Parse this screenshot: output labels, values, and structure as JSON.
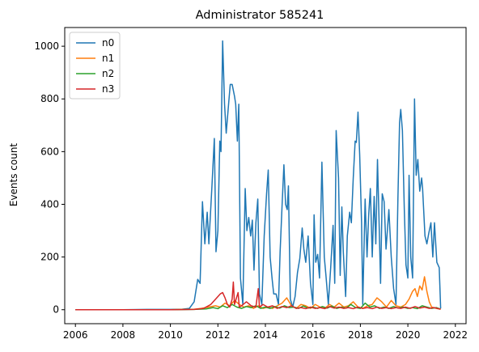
{
  "chart_data": {
    "type": "line",
    "title": "Administrator 585241",
    "xlabel": "",
    "ylabel": "Events count",
    "xlim": [
      2005.55,
      2022.45
    ],
    "ylim": [
      -53,
      1071
    ],
    "x_ticks": [
      2006,
      2008,
      2010,
      2012,
      2014,
      2016,
      2018,
      2020,
      2022
    ],
    "y_ticks": [
      0,
      200,
      400,
      600,
      800,
      1000
    ],
    "legend": {
      "placement": "top-left",
      "entries": [
        "n0",
        "n1",
        "n2",
        "n3"
      ]
    },
    "grid": false,
    "series": [
      {
        "name": "n0",
        "color": "#1f77b4",
        "points": [
          [
            2006.0,
            0
          ],
          [
            2008.0,
            0
          ],
          [
            2009.0,
            1
          ],
          [
            2010.0,
            1
          ],
          [
            2010.5,
            2
          ],
          [
            2010.8,
            5
          ],
          [
            2011.0,
            30
          ],
          [
            2011.15,
            115
          ],
          [
            2011.25,
            100
          ],
          [
            2011.35,
            410
          ],
          [
            2011.45,
            250
          ],
          [
            2011.55,
            370
          ],
          [
            2011.62,
            250
          ],
          [
            2011.75,
            470
          ],
          [
            2011.85,
            650
          ],
          [
            2011.92,
            220
          ],
          [
            2012.0,
            300
          ],
          [
            2012.08,
            640
          ],
          [
            2012.13,
            600
          ],
          [
            2012.2,
            1020
          ],
          [
            2012.28,
            780
          ],
          [
            2012.35,
            670
          ],
          [
            2012.45,
            780
          ],
          [
            2012.52,
            855
          ],
          [
            2012.6,
            855
          ],
          [
            2012.7,
            810
          ],
          [
            2012.75,
            780
          ],
          [
            2012.82,
            640
          ],
          [
            2012.88,
            780
          ],
          [
            2012.95,
            120
          ],
          [
            2013.05,
            20
          ],
          [
            2013.15,
            460
          ],
          [
            2013.22,
            300
          ],
          [
            2013.3,
            350
          ],
          [
            2013.38,
            280
          ],
          [
            2013.45,
            340
          ],
          [
            2013.52,
            150
          ],
          [
            2013.6,
            330
          ],
          [
            2013.68,
            420
          ],
          [
            2013.75,
            60
          ],
          [
            2013.85,
            20
          ],
          [
            2013.95,
            280
          ],
          [
            2014.05,
            440
          ],
          [
            2014.12,
            530
          ],
          [
            2014.2,
            200
          ],
          [
            2014.28,
            120
          ],
          [
            2014.35,
            60
          ],
          [
            2014.45,
            60
          ],
          [
            2014.55,
            20
          ],
          [
            2014.62,
            220
          ],
          [
            2014.7,
            390
          ],
          [
            2014.78,
            550
          ],
          [
            2014.85,
            400
          ],
          [
            2014.92,
            380
          ],
          [
            2014.97,
            470
          ],
          [
            2015.05,
            40
          ],
          [
            2015.15,
            10
          ],
          [
            2015.25,
            50
          ],
          [
            2015.35,
            140
          ],
          [
            2015.45,
            195
          ],
          [
            2015.55,
            310
          ],
          [
            2015.62,
            230
          ],
          [
            2015.7,
            180
          ],
          [
            2015.8,
            280
          ],
          [
            2015.9,
            100
          ],
          [
            2016.0,
            20
          ],
          [
            2016.05,
            360
          ],
          [
            2016.12,
            180
          ],
          [
            2016.2,
            210
          ],
          [
            2016.28,
            120
          ],
          [
            2016.38,
            560
          ],
          [
            2016.48,
            200
          ],
          [
            2016.55,
            130
          ],
          [
            2016.65,
            20
          ],
          [
            2016.75,
            160
          ],
          [
            2016.85,
            320
          ],
          [
            2016.92,
            100
          ],
          [
            2016.98,
            680
          ],
          [
            2017.08,
            500
          ],
          [
            2017.15,
            130
          ],
          [
            2017.22,
            390
          ],
          [
            2017.28,
            220
          ],
          [
            2017.38,
            50
          ],
          [
            2017.45,
            280
          ],
          [
            2017.55,
            370
          ],
          [
            2017.62,
            330
          ],
          [
            2017.7,
            500
          ],
          [
            2017.78,
            640
          ],
          [
            2017.83,
            635
          ],
          [
            2017.9,
            750
          ],
          [
            2017.97,
            590
          ],
          [
            2018.05,
            330
          ],
          [
            2018.1,
            20
          ],
          [
            2018.2,
            420
          ],
          [
            2018.28,
            200
          ],
          [
            2018.35,
            360
          ],
          [
            2018.42,
            460
          ],
          [
            2018.5,
            200
          ],
          [
            2018.58,
            430
          ],
          [
            2018.65,
            250
          ],
          [
            2018.72,
            570
          ],
          [
            2018.78,
            360
          ],
          [
            2018.85,
            100
          ],
          [
            2018.92,
            440
          ],
          [
            2019.0,
            410
          ],
          [
            2019.08,
            230
          ],
          [
            2019.2,
            380
          ],
          [
            2019.3,
            200
          ],
          [
            2019.4,
            80
          ],
          [
            2019.5,
            20
          ],
          [
            2019.58,
            420
          ],
          [
            2019.65,
            710
          ],
          [
            2019.7,
            760
          ],
          [
            2019.77,
            680
          ],
          [
            2019.85,
            380
          ],
          [
            2019.92,
            170
          ],
          [
            2020.0,
            120
          ],
          [
            2020.05,
            510
          ],
          [
            2020.12,
            200
          ],
          [
            2020.2,
            120
          ],
          [
            2020.28,
            800
          ],
          [
            2020.35,
            510
          ],
          [
            2020.42,
            570
          ],
          [
            2020.5,
            450
          ],
          [
            2020.58,
            500
          ],
          [
            2020.62,
            460
          ],
          [
            2020.72,
            280
          ],
          [
            2020.8,
            250
          ],
          [
            2020.88,
            290
          ],
          [
            2020.97,
            330
          ],
          [
            2021.05,
            200
          ],
          [
            2021.12,
            330
          ],
          [
            2021.22,
            180
          ],
          [
            2021.32,
            160
          ],
          [
            2021.38,
            5
          ]
        ]
      },
      {
        "name": "n1",
        "color": "#ff7f0e",
        "points": [
          [
            2006.0,
            0
          ],
          [
            2010.0,
            0
          ],
          [
            2010.5,
            1
          ],
          [
            2011.0,
            2
          ],
          [
            2011.3,
            5
          ],
          [
            2011.6,
            10
          ],
          [
            2011.9,
            15
          ],
          [
            2012.1,
            10
          ],
          [
            2012.3,
            25
          ],
          [
            2012.5,
            15
          ],
          [
            2012.7,
            35
          ],
          [
            2012.9,
            20
          ],
          [
            2013.1,
            10
          ],
          [
            2013.3,
            15
          ],
          [
            2013.5,
            5
          ],
          [
            2013.7,
            15
          ],
          [
            2013.9,
            5
          ],
          [
            2014.1,
            10
          ],
          [
            2014.3,
            5
          ],
          [
            2014.5,
            15
          ],
          [
            2014.7,
            25
          ],
          [
            2014.9,
            45
          ],
          [
            2015.1,
            15
          ],
          [
            2015.3,
            5
          ],
          [
            2015.5,
            20
          ],
          [
            2015.7,
            15
          ],
          [
            2015.9,
            5
          ],
          [
            2016.1,
            20
          ],
          [
            2016.3,
            10
          ],
          [
            2016.5,
            5
          ],
          [
            2016.7,
            20
          ],
          [
            2016.9,
            10
          ],
          [
            2017.1,
            25
          ],
          [
            2017.3,
            10
          ],
          [
            2017.5,
            15
          ],
          [
            2017.7,
            30
          ],
          [
            2017.9,
            10
          ],
          [
            2018.1,
            5
          ],
          [
            2018.3,
            15
          ],
          [
            2018.5,
            20
          ],
          [
            2018.7,
            45
          ],
          [
            2018.9,
            30
          ],
          [
            2019.1,
            10
          ],
          [
            2019.3,
            35
          ],
          [
            2019.5,
            15
          ],
          [
            2019.7,
            10
          ],
          [
            2019.9,
            20
          ],
          [
            2020.05,
            40
          ],
          [
            2020.2,
            70
          ],
          [
            2020.3,
            80
          ],
          [
            2020.4,
            50
          ],
          [
            2020.5,
            90
          ],
          [
            2020.6,
            75
          ],
          [
            2020.7,
            125
          ],
          [
            2020.8,
            70
          ],
          [
            2020.9,
            30
          ],
          [
            2021.0,
            10
          ],
          [
            2021.2,
            5
          ],
          [
            2021.38,
            2
          ]
        ]
      },
      {
        "name": "n2",
        "color": "#2ca02c",
        "points": [
          [
            2006.0,
            0
          ],
          [
            2010.0,
            0
          ],
          [
            2011.0,
            1
          ],
          [
            2011.5,
            3
          ],
          [
            2011.8,
            8
          ],
          [
            2012.0,
            4
          ],
          [
            2012.2,
            15
          ],
          [
            2012.4,
            8
          ],
          [
            2012.6,
            20
          ],
          [
            2012.8,
            10
          ],
          [
            2013.0,
            5
          ],
          [
            2013.2,
            12
          ],
          [
            2013.4,
            8
          ],
          [
            2013.6,
            15
          ],
          [
            2013.8,
            5
          ],
          [
            2014.0,
            10
          ],
          [
            2014.2,
            5
          ],
          [
            2014.4,
            12
          ],
          [
            2014.6,
            6
          ],
          [
            2014.8,
            15
          ],
          [
            2015.0,
            8
          ],
          [
            2015.2,
            10
          ],
          [
            2015.4,
            5
          ],
          [
            2015.6,
            14
          ],
          [
            2015.8,
            6
          ],
          [
            2016.0,
            10
          ],
          [
            2016.2,
            5
          ],
          [
            2016.4,
            12
          ],
          [
            2016.6,
            6
          ],
          [
            2016.8,
            14
          ],
          [
            2017.0,
            5
          ],
          [
            2017.2,
            10
          ],
          [
            2017.4,
            6
          ],
          [
            2017.6,
            20
          ],
          [
            2017.8,
            8
          ],
          [
            2018.0,
            5
          ],
          [
            2018.2,
            25
          ],
          [
            2018.4,
            10
          ],
          [
            2018.6,
            15
          ],
          [
            2018.8,
            5
          ],
          [
            2019.0,
            10
          ],
          [
            2019.2,
            5
          ],
          [
            2019.4,
            12
          ],
          [
            2019.6,
            6
          ],
          [
            2019.8,
            10
          ],
          [
            2020.0,
            5
          ],
          [
            2020.2,
            8
          ],
          [
            2020.4,
            4
          ],
          [
            2020.6,
            15
          ],
          [
            2020.8,
            10
          ],
          [
            2021.0,
            5
          ],
          [
            2021.2,
            8
          ],
          [
            2021.38,
            2
          ]
        ]
      },
      {
        "name": "n3",
        "color": "#d62728",
        "points": [
          [
            2006.0,
            0
          ],
          [
            2010.0,
            0
          ],
          [
            2011.0,
            1
          ],
          [
            2011.4,
            5
          ],
          [
            2011.7,
            20
          ],
          [
            2011.9,
            40
          ],
          [
            2012.1,
            60
          ],
          [
            2012.2,
            65
          ],
          [
            2012.3,
            45
          ],
          [
            2012.4,
            20
          ],
          [
            2012.5,
            10
          ],
          [
            2012.6,
            40
          ],
          [
            2012.65,
            105
          ],
          [
            2012.7,
            20
          ],
          [
            2012.8,
            50
          ],
          [
            2012.85,
            65
          ],
          [
            2012.9,
            10
          ],
          [
            2013.0,
            15
          ],
          [
            2013.2,
            30
          ],
          [
            2013.4,
            15
          ],
          [
            2013.6,
            10
          ],
          [
            2013.7,
            80
          ],
          [
            2013.75,
            10
          ],
          [
            2013.9,
            20
          ],
          [
            2014.1,
            10
          ],
          [
            2014.3,
            15
          ],
          [
            2014.5,
            5
          ],
          [
            2014.7,
            12
          ],
          [
            2014.9,
            8
          ],
          [
            2015.1,
            15
          ],
          [
            2015.3,
            5
          ],
          [
            2015.5,
            8
          ],
          [
            2015.7,
            4
          ],
          [
            2015.9,
            10
          ],
          [
            2016.1,
            5
          ],
          [
            2016.3,
            8
          ],
          [
            2016.5,
            4
          ],
          [
            2016.7,
            12
          ],
          [
            2016.9,
            6
          ],
          [
            2017.1,
            10
          ],
          [
            2017.3,
            5
          ],
          [
            2017.5,
            8
          ],
          [
            2017.7,
            4
          ],
          [
            2017.9,
            10
          ],
          [
            2018.1,
            5
          ],
          [
            2018.3,
            8
          ],
          [
            2018.5,
            4
          ],
          [
            2018.7,
            10
          ],
          [
            2018.9,
            5
          ],
          [
            2019.1,
            8
          ],
          [
            2019.3,
            4
          ],
          [
            2019.5,
            8
          ],
          [
            2019.7,
            5
          ],
          [
            2019.9,
            10
          ],
          [
            2020.1,
            5
          ],
          [
            2020.3,
            12
          ],
          [
            2020.5,
            6
          ],
          [
            2020.7,
            10
          ],
          [
            2020.9,
            5
          ],
          [
            2021.1,
            8
          ],
          [
            2021.38,
            2
          ]
        ]
      }
    ]
  }
}
